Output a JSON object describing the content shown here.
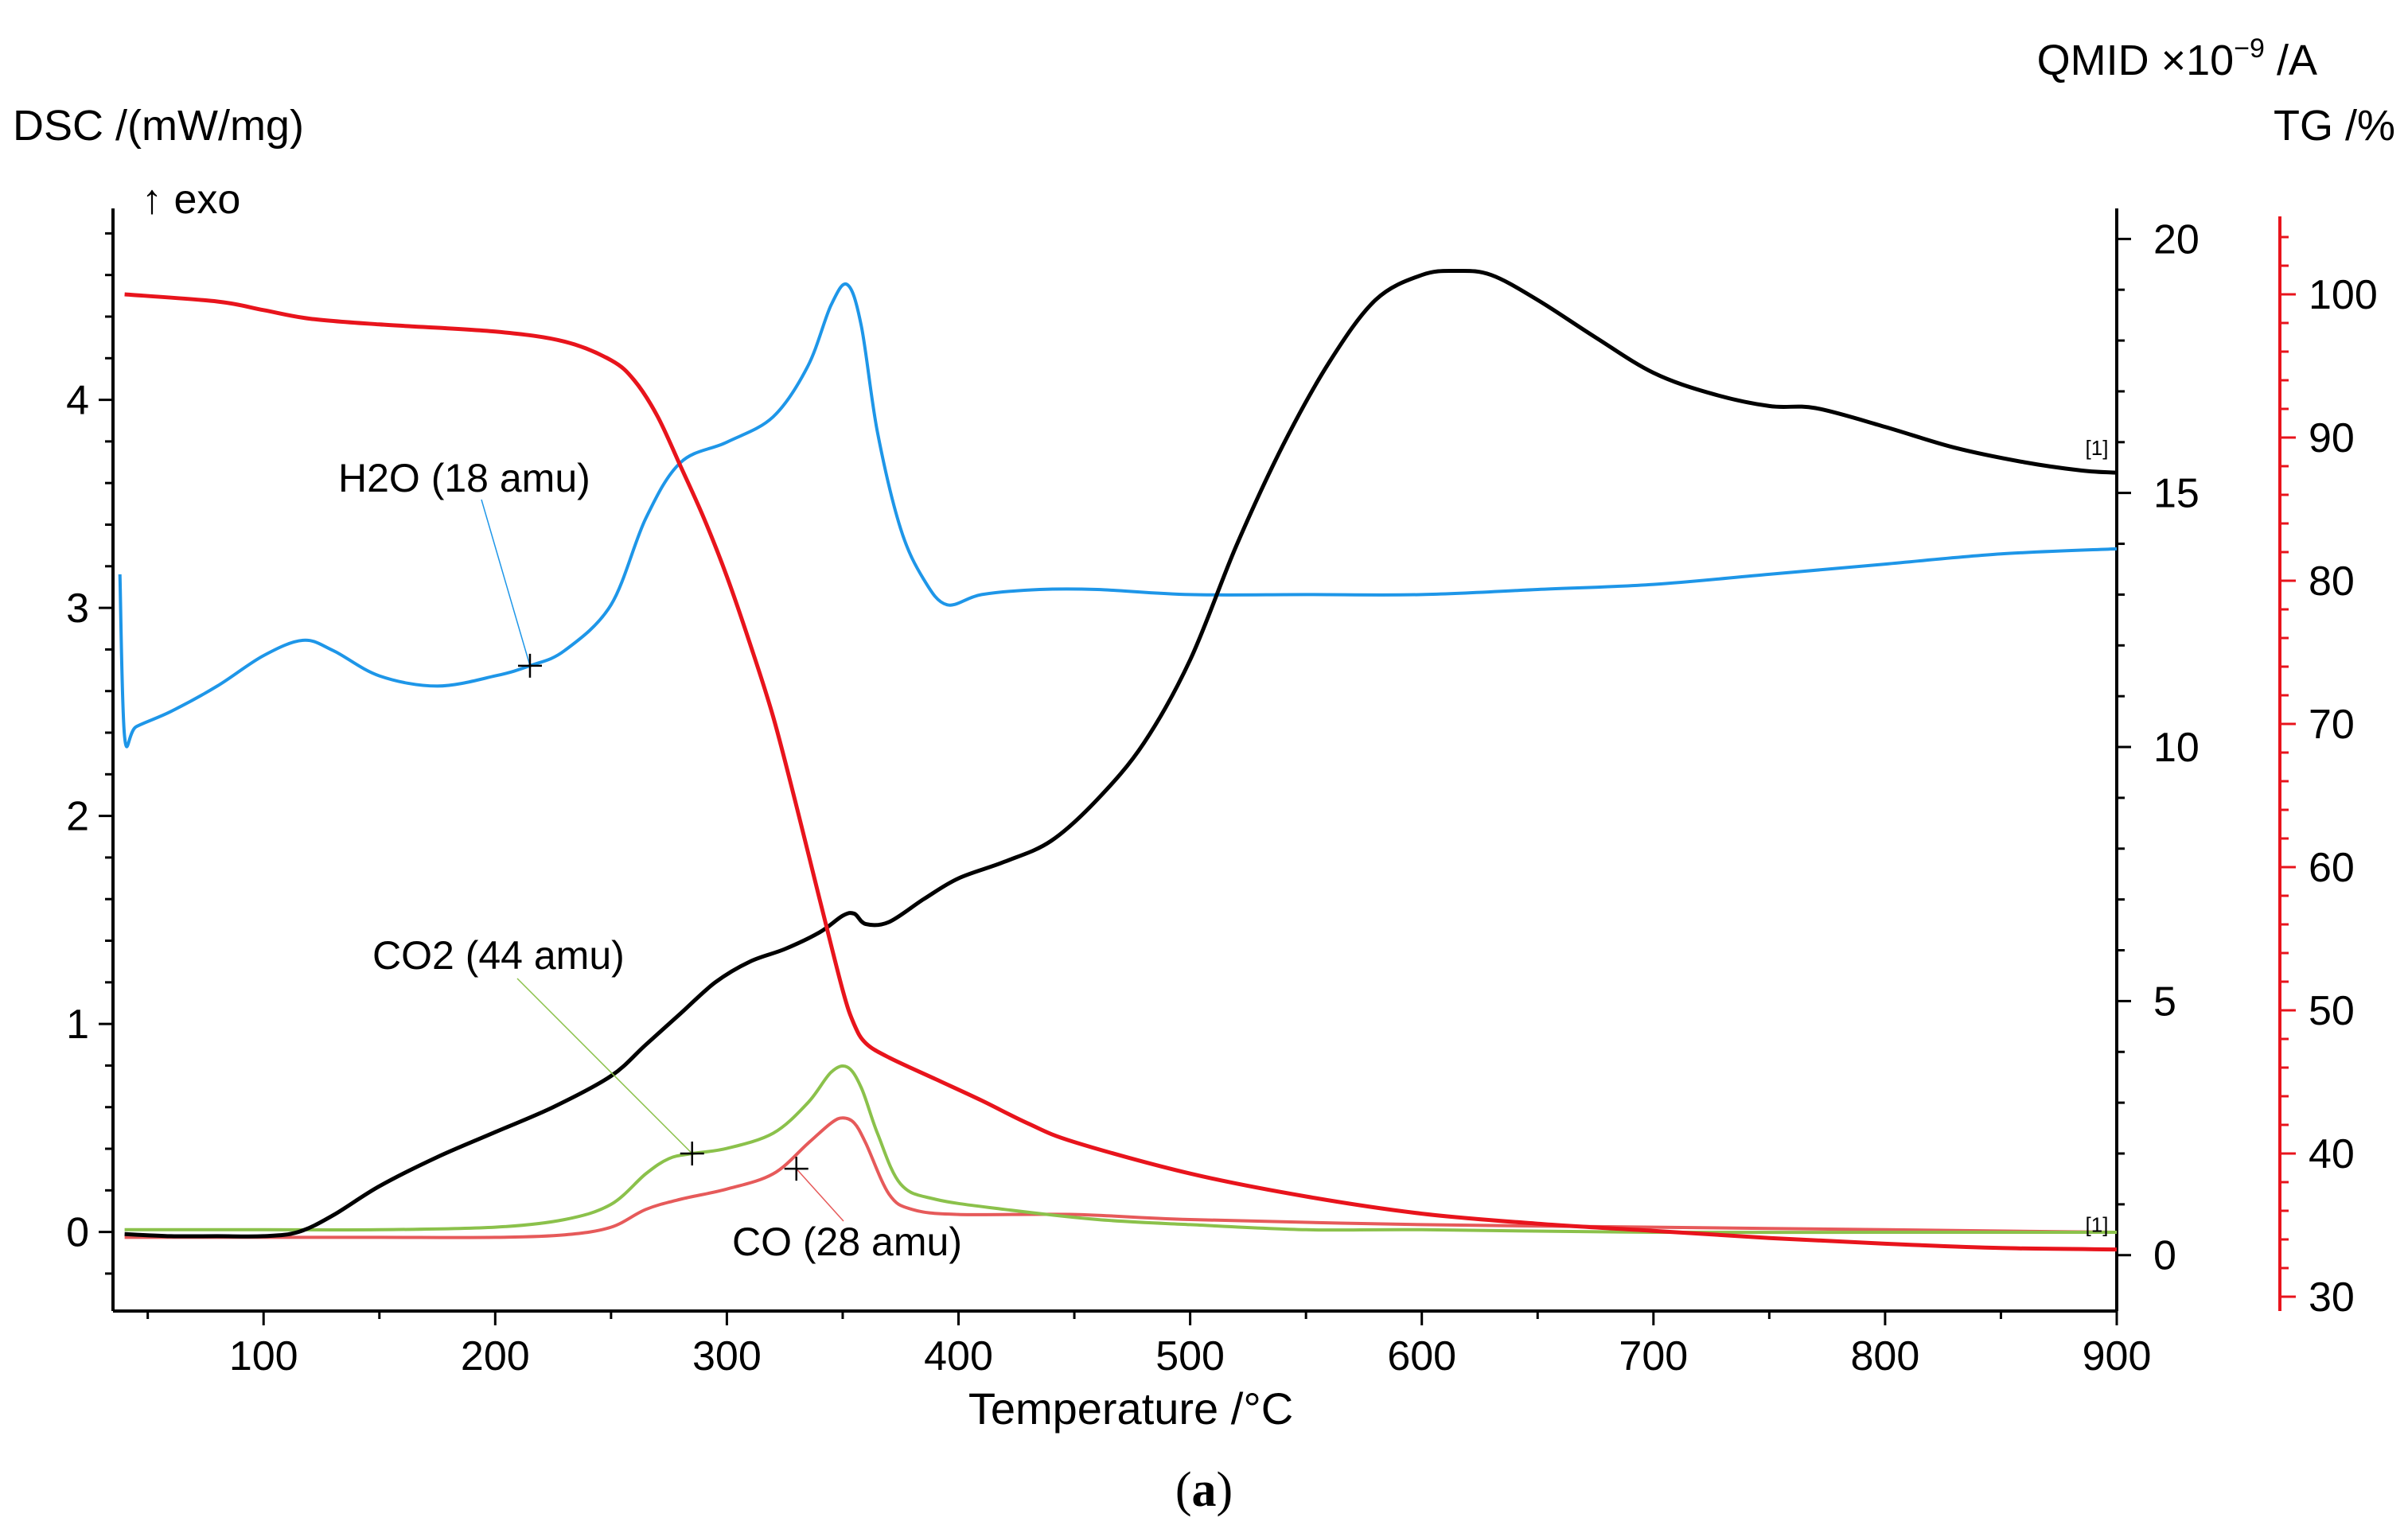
{
  "chart_data": {
    "type": "line",
    "caption": "a",
    "xaxis": {
      "label": "Temperature /°C",
      "range": [
        35,
        900
      ],
      "ticks": [
        100,
        200,
        300,
        400,
        500,
        600,
        700,
        800,
        900
      ],
      "minor_step": 50
    },
    "y_dsc": {
      "label": "DSC /(mW/mg)",
      "sublabel": "↑ exo",
      "range": [
        -0.38,
        4.92
      ],
      "ticks": [
        0,
        1,
        2,
        3,
        4
      ],
      "minor_step": 0.2,
      "color": "#000000"
    },
    "y_qmid": {
      "label": "QMID ×10",
      "exponent": "−9",
      "unit": " /A",
      "range": [
        -1.1,
        20.6
      ],
      "ticks": [
        0,
        5,
        10,
        15,
        20
      ],
      "minor_step": 1,
      "color": "#000000"
    },
    "y_tg": {
      "label": "TG /%",
      "range": [
        29,
        106
      ],
      "ticks": [
        30,
        40,
        50,
        60,
        70,
        80,
        90,
        100
      ],
      "minor_step": 2,
      "color": "#e8141c"
    },
    "series": [
      {
        "name": "DSC",
        "axis": "dsc",
        "color": "#000000",
        "marker_label": "[1]",
        "x": [
          40,
          60,
          80,
          100,
          115,
          130,
          150,
          175,
          200,
          225,
          250,
          265,
          280,
          295,
          310,
          325,
          340,
          350,
          355,
          360,
          370,
          385,
          400,
          420,
          440,
          460,
          480,
          500,
          520,
          540,
          560,
          580,
          600,
          615,
          630,
          650,
          675,
          700,
          725,
          750,
          770,
          800,
          830,
          860,
          885,
          900
        ],
        "y": [
          -0.01,
          -0.02,
          -0.02,
          -0.02,
          0.0,
          0.08,
          0.22,
          0.36,
          0.48,
          0.6,
          0.75,
          0.9,
          1.05,
          1.2,
          1.3,
          1.36,
          1.44,
          1.52,
          1.53,
          1.48,
          1.49,
          1.6,
          1.7,
          1.78,
          1.88,
          2.08,
          2.35,
          2.75,
          3.3,
          3.78,
          4.18,
          4.48,
          4.6,
          4.62,
          4.6,
          4.48,
          4.3,
          4.13,
          4.03,
          3.97,
          3.96,
          3.87,
          3.77,
          3.7,
          3.66,
          3.65
        ]
      },
      {
        "name": "TG",
        "axis": "tg",
        "color": "#e8141c",
        "marker_label": "[1]",
        "x": [
          40,
          80,
          100,
          120,
          150,
          200,
          230,
          250,
          260,
          270,
          280,
          290,
          300,
          310,
          320,
          330,
          340,
          350,
          355,
          360,
          370,
          390,
          410,
          430,
          450,
          500,
          550,
          600,
          650,
          700,
          750,
          800,
          850,
          900
        ],
        "y": [
          100,
          99.5,
          98.9,
          98.3,
          97.9,
          97.4,
          96.7,
          95.4,
          94,
          91.5,
          88,
          84.4,
          80.3,
          75.6,
          70.5,
          64.3,
          57.8,
          51.4,
          49,
          47.7,
          46.7,
          45.2,
          43.7,
          42.1,
          40.8,
          38.6,
          37,
          35.8,
          35.1,
          34.6,
          34.1,
          33.7,
          33.4,
          33.3
        ]
      },
      {
        "name": "H2O (18 amu)",
        "axis": "qmid",
        "color": "#1e96e8",
        "label": "H2O (18 amu)",
        "x": [
          38,
          40,
          45,
          60,
          80,
          100,
          117,
          130,
          150,
          175,
          200,
          215,
          230,
          250,
          265,
          280,
          300,
          320,
          335,
          345,
          352,
          358,
          365,
          375,
          385,
          395,
          410,
          435,
          460,
          500,
          550,
          600,
          650,
          700,
          750,
          800,
          850,
          900
        ],
        "y": [
          13.4,
          10.2,
          10.4,
          10.7,
          11.2,
          11.8,
          12.1,
          11.9,
          11.4,
          11.2,
          11.4,
          11.6,
          11.9,
          12.8,
          14.5,
          15.6,
          16.0,
          16.5,
          17.5,
          18.7,
          19.1,
          18.3,
          16.2,
          14.3,
          13.3,
          12.8,
          13.0,
          13.1,
          13.1,
          13.0,
          13.0,
          13.0,
          13.1,
          13.2,
          13.4,
          13.6,
          13.8,
          13.9
        ]
      },
      {
        "name": "CO2 (44 amu)",
        "axis": "qmid",
        "color": "#8bc14b",
        "label": "CO2 (44 amu)",
        "x": [
          40,
          100,
          150,
          200,
          230,
          250,
          265,
          275,
          285,
          300,
          320,
          335,
          345,
          352,
          358,
          365,
          375,
          390,
          420,
          460,
          500,
          550,
          600,
          700,
          800,
          900
        ],
        "y": [
          0.5,
          0.5,
          0.5,
          0.55,
          0.7,
          1.0,
          1.6,
          1.9,
          2.0,
          2.1,
          2.4,
          3.0,
          3.6,
          3.7,
          3.3,
          2.4,
          1.4,
          1.1,
          0.9,
          0.7,
          0.6,
          0.5,
          0.5,
          0.45,
          0.45,
          0.45
        ]
      },
      {
        "name": "CO (28 amu)",
        "axis": "qmid",
        "color": "#e65a5a",
        "label": "CO (28 amu)",
        "x": [
          40,
          100,
          150,
          200,
          230,
          250,
          265,
          280,
          300,
          320,
          335,
          345,
          350,
          355,
          360,
          370,
          380,
          400,
          450,
          500,
          600,
          700,
          800,
          900
        ],
        "y": [
          0.35,
          0.35,
          0.35,
          0.35,
          0.4,
          0.55,
          0.9,
          1.1,
          1.3,
          1.6,
          2.2,
          2.6,
          2.7,
          2.6,
          2.2,
          1.2,
          0.9,
          0.8,
          0.8,
          0.7,
          0.6,
          0.55,
          0.5,
          0.45
        ]
      }
    ],
    "annotations": [
      {
        "text": "H2O (18 amu)",
        "color": "#1e96e8",
        "anchor_x": 215,
        "anchor_y": 11.6,
        "axis": "qmid"
      },
      {
        "text": "CO2 (44 amu)",
        "color": "#8bc14b",
        "anchor_x": 285,
        "anchor_y": 2.0,
        "axis": "qmid"
      },
      {
        "text": "CO (28 amu)",
        "color": "#e65a5a",
        "anchor_x": 330,
        "anchor_y": 1.7,
        "axis": "qmid"
      }
    ]
  }
}
